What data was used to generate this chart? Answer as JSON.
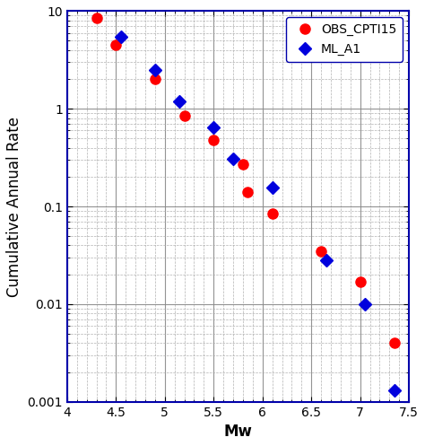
{
  "obs_x": [
    4.3,
    4.5,
    4.9,
    5.2,
    5.5,
    5.8,
    5.85,
    6.1,
    6.6,
    7.0,
    7.35
  ],
  "obs_y": [
    8.5,
    4.5,
    2.0,
    0.85,
    0.48,
    0.27,
    0.14,
    0.085,
    0.035,
    0.017,
    0.004
  ],
  "ml_x": [
    4.55,
    4.9,
    5.15,
    5.5,
    5.7,
    6.1,
    6.65,
    7.05,
    7.35
  ],
  "ml_y": [
    5.5,
    2.5,
    1.2,
    0.65,
    0.31,
    0.155,
    0.028,
    0.01,
    0.0013
  ],
  "obs_color": "#ff0000",
  "ml_color": "#0000dd",
  "obs_label": "OBS_CPTI15",
  "ml_label": "ML_A1",
  "xlabel": "Mw",
  "ylabel": "Cumulative Annual Rate",
  "xlim": [
    4.0,
    7.5
  ],
  "ylim": [
    0.001,
    10
  ],
  "obs_marker": "o",
  "ml_marker": "D",
  "obs_markersize": 8,
  "ml_markersize": 7,
  "spine_color": "#0000aa",
  "major_grid_color": "#888888",
  "minor_grid_color": "#aaaaaa",
  "legend_fontsize": 10,
  "axis_label_fontsize": 12,
  "tick_fontsize": 10,
  "xticks": [
    4,
    4.5,
    5,
    5.5,
    6,
    6.5,
    7,
    7.5
  ],
  "xtick_labels": [
    "4",
    "4.5",
    "5",
    "5.5",
    "6",
    "6.5",
    "7",
    "7.5"
  ],
  "ytick_labels": [
    "0.001",
    "0.01",
    "0.1",
    "1",
    "10"
  ]
}
